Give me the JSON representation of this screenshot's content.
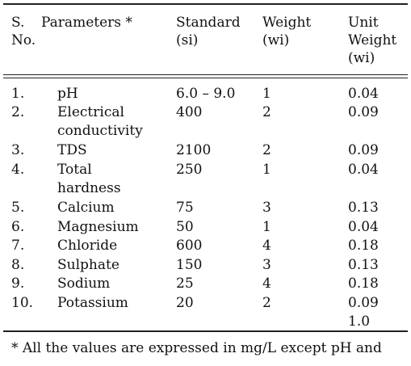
{
  "header": {
    "sno": [
      "S.",
      "No."
    ],
    "parameters": "Parameters *",
    "standard": [
      "Standard",
      "(si)"
    ],
    "weight": [
      "Weight",
      "(wi)"
    ],
    "unit_weight": [
      "Unit",
      "Weight",
      "(wi)"
    ]
  },
  "rows": [
    {
      "sno": "1.",
      "param": [
        "pH"
      ],
      "standard": "6.0 – 9.0",
      "weight": "1",
      "unit_weight": "0.04"
    },
    {
      "sno": "2.",
      "param": [
        "Electrical",
        "conductivity"
      ],
      "standard": "400",
      "weight": "2",
      "unit_weight": "0.09"
    },
    {
      "sno": "3.",
      "param": [
        "TDS"
      ],
      "standard": "2100",
      "weight": "2",
      "unit_weight": "0.09"
    },
    {
      "sno": "4.",
      "param": [
        "Total",
        "hardness"
      ],
      "standard": "250",
      "weight": "1",
      "unit_weight": "0.04"
    },
    {
      "sno": "5.",
      "param": [
        "Calcium"
      ],
      "standard": "75",
      "weight": "3",
      "unit_weight": "0.13"
    },
    {
      "sno": "6.",
      "param": [
        "Magnesium"
      ],
      "standard": "50",
      "weight": "1",
      "unit_weight": "0.04"
    },
    {
      "sno": "7.",
      "param": [
        "Chloride"
      ],
      "standard": "600",
      "weight": "4",
      "unit_weight": "0.18"
    },
    {
      "sno": "8.",
      "param": [
        "Sulphate"
      ],
      "standard": "150",
      "weight": "3",
      "unit_weight": "0.13"
    },
    {
      "sno": "9.",
      "param": [
        "Sodium"
      ],
      "standard": "25",
      "weight": "4",
      "unit_weight": "0.18"
    },
    {
      "sno": "10.",
      "param": [
        "Potassium"
      ],
      "standard": "20",
      "weight": "2",
      "unit_weight": "0.09"
    }
  ],
  "total": "1.0",
  "footnote": "* All the values are expressed in mg/L except pH and"
}
